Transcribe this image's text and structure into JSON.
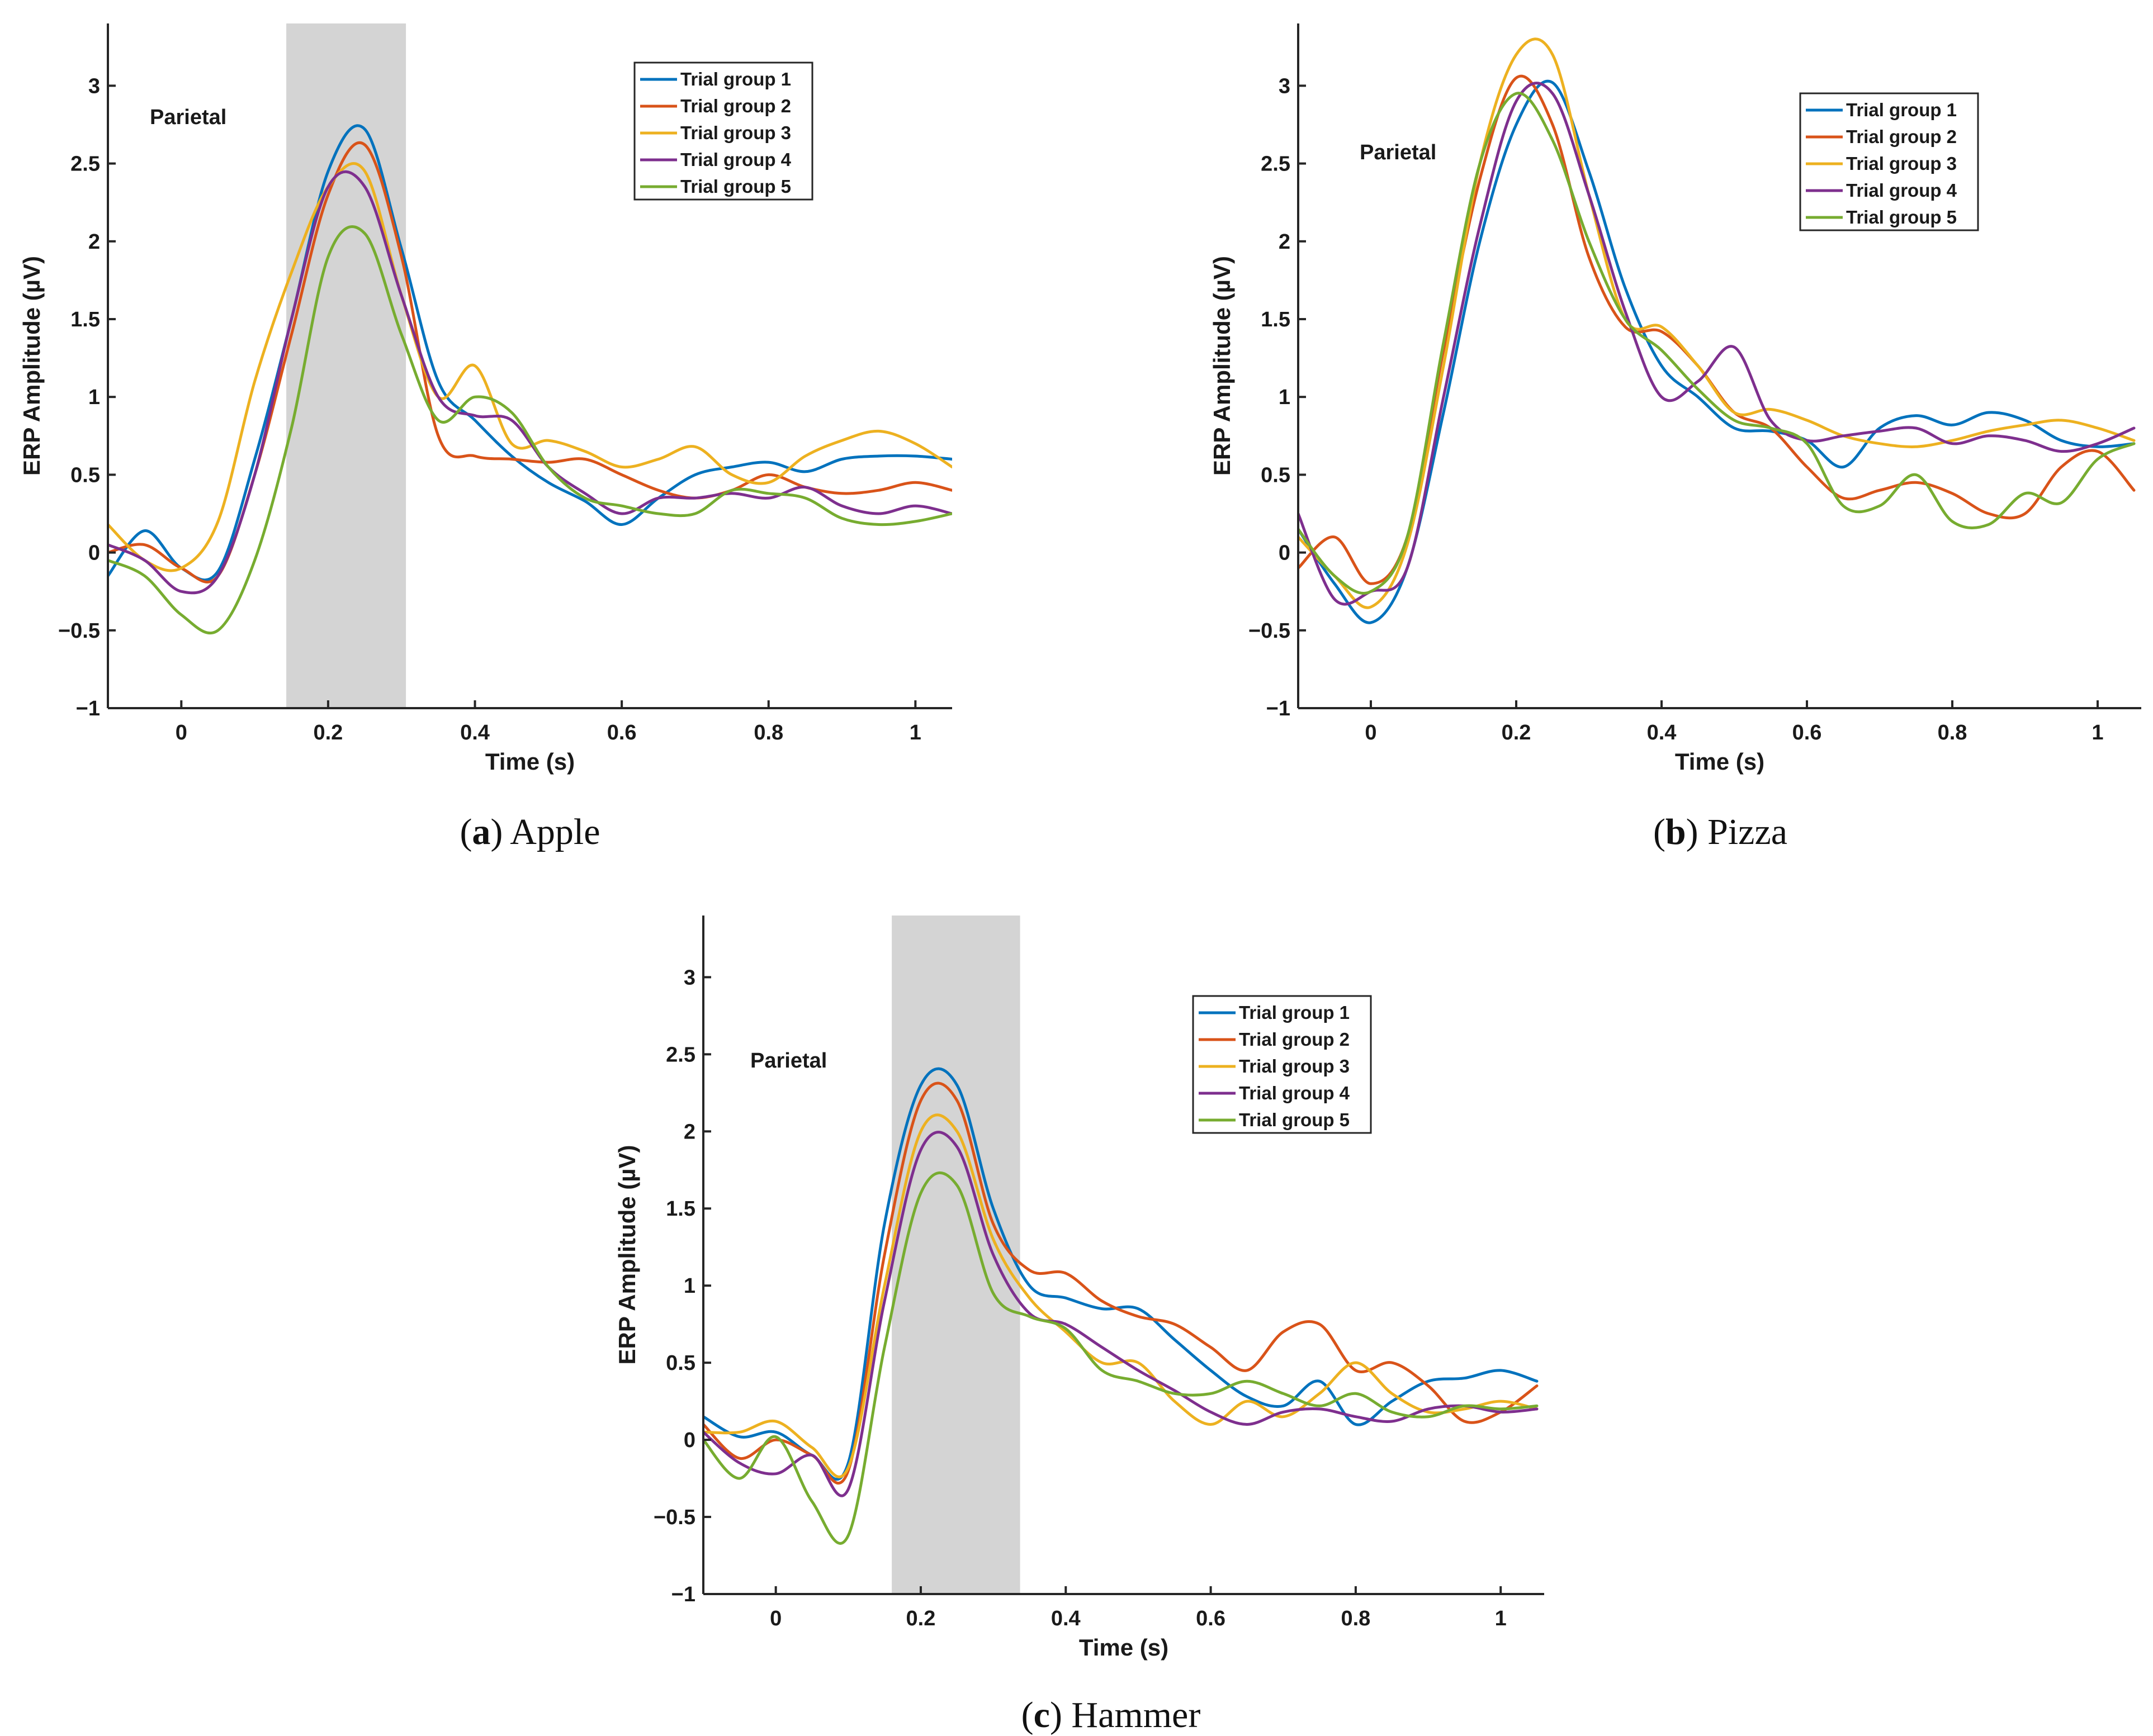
{
  "figure": {
    "captions": [
      {
        "tag": "a",
        "name": "Apple"
      },
      {
        "tag": "b",
        "name": "Pizza"
      },
      {
        "tag": "c",
        "name": "Hammer"
      }
    ]
  },
  "colors": [
    "#0072BD",
    "#D95319",
    "#EDB120",
    "#7E2F8E",
    "#77AC30"
  ],
  "chart_data": [
    {
      "type": "line",
      "title": "Apple",
      "xlabel": "Time (s)",
      "ylabel": "ERP Amplitude (µV)",
      "annotation": "Parietal",
      "xlim": [
        -0.1,
        1.05
      ],
      "ylim": [
        -1,
        3.4
      ],
      "xticks": [
        0,
        0.2,
        0.4,
        0.6,
        0.8,
        1
      ],
      "xtick_labels": [
        "0",
        "0.2",
        "0.4",
        "0.6",
        "0.8",
        "1"
      ],
      "yticks": [
        -1,
        -0.5,
        0,
        0.5,
        1,
        1.5,
        2,
        2.5,
        3
      ],
      "ytick_labels": [
        "−1",
        "−0.5",
        "0",
        "0.5",
        "1",
        "1.5",
        "2",
        "2.5",
        "3"
      ],
      "highlight_range": [
        0.143,
        0.306
      ],
      "legend_position": "top-right",
      "x": [
        -0.1,
        -0.05,
        0.0,
        0.05,
        0.1,
        0.15,
        0.2,
        0.25,
        0.3,
        0.35,
        0.4,
        0.45,
        0.5,
        0.55,
        0.6,
        0.65,
        0.7,
        0.75,
        0.8,
        0.85,
        0.9,
        0.95,
        1.0,
        1.05
      ],
      "series": [
        {
          "name": "Trial group 1",
          "values": [
            -0.15,
            0.14,
            -0.1,
            -0.12,
            0.6,
            1.5,
            2.45,
            2.72,
            1.95,
            1.1,
            0.85,
            0.62,
            0.45,
            0.33,
            0.18,
            0.35,
            0.5,
            0.55,
            0.58,
            0.52,
            0.6,
            0.62,
            0.62,
            0.6
          ]
        },
        {
          "name": "Trial group 2",
          "values": [
            0.0,
            0.05,
            -0.1,
            -0.15,
            0.5,
            1.4,
            2.3,
            2.62,
            1.9,
            0.75,
            0.62,
            0.6,
            0.58,
            0.6,
            0.5,
            0.4,
            0.35,
            0.4,
            0.5,
            0.42,
            0.38,
            0.4,
            0.45,
            0.4
          ]
        },
        {
          "name": "Trial group 3",
          "values": [
            0.18,
            -0.05,
            -0.1,
            0.2,
            1.1,
            1.8,
            2.35,
            2.45,
            1.65,
            1.0,
            1.2,
            0.7,
            0.72,
            0.65,
            0.55,
            0.6,
            0.68,
            0.5,
            0.45,
            0.62,
            0.72,
            0.78,
            0.7,
            0.55
          ]
        },
        {
          "name": "Trial group 4",
          "values": [
            0.05,
            -0.05,
            -0.25,
            -0.15,
            0.5,
            1.5,
            2.35,
            2.35,
            1.65,
            1.0,
            0.88,
            0.85,
            0.55,
            0.38,
            0.25,
            0.35,
            0.35,
            0.38,
            0.35,
            0.42,
            0.3,
            0.25,
            0.3,
            0.25
          ]
        },
        {
          "name": "Trial group 5",
          "values": [
            -0.05,
            -0.15,
            -0.4,
            -0.5,
            -0.05,
            0.8,
            1.9,
            2.05,
            1.4,
            0.85,
            1.0,
            0.9,
            0.55,
            0.35,
            0.3,
            0.25,
            0.25,
            0.4,
            0.38,
            0.35,
            0.22,
            0.18,
            0.2,
            0.25
          ]
        }
      ]
    },
    {
      "type": "line",
      "title": "Pizza",
      "xlabel": "Time (s)",
      "ylabel": "ERP Amplitude (µV)",
      "annotation": "Parietal",
      "xlim": [
        -0.1,
        1.06
      ],
      "ylim": [
        -1,
        3.4
      ],
      "xticks": [
        0,
        0.2,
        0.4,
        0.6,
        0.8,
        1
      ],
      "xtick_labels": [
        "0",
        "0.2",
        "0.4",
        "0.6",
        "0.8",
        "1"
      ],
      "yticks": [
        -1,
        -0.5,
        0,
        0.5,
        1,
        1.5,
        2,
        2.5,
        3
      ],
      "ytick_labels": [
        "−1",
        "−0.5",
        "0",
        "0.5",
        "1",
        "1.5",
        "2",
        "2.5",
        "3"
      ],
      "highlight_range": null,
      "legend_position": "top-right",
      "x": [
        -0.1,
        -0.05,
        0.0,
        0.05,
        0.1,
        0.15,
        0.2,
        0.25,
        0.3,
        0.35,
        0.4,
        0.45,
        0.5,
        0.55,
        0.6,
        0.65,
        0.7,
        0.75,
        0.8,
        0.85,
        0.9,
        0.95,
        1.0,
        1.05
      ],
      "series": [
        {
          "name": "Trial group 1",
          "values": [
            0.15,
            -0.2,
            -0.45,
            -0.1,
            0.9,
            2.0,
            2.75,
            3.02,
            2.45,
            1.7,
            1.2,
            1.0,
            0.8,
            0.78,
            0.72,
            0.55,
            0.8,
            0.88,
            0.82,
            0.9,
            0.85,
            0.72,
            0.68,
            0.7
          ]
        },
        {
          "name": "Trial group 2",
          "values": [
            -0.1,
            0.1,
            -0.2,
            0.1,
            1.3,
            2.4,
            3.05,
            2.75,
            1.9,
            1.45,
            1.42,
            1.2,
            0.9,
            0.8,
            0.55,
            0.35,
            0.4,
            0.45,
            0.38,
            0.25,
            0.25,
            0.55,
            0.65,
            0.4
          ]
        },
        {
          "name": "Trial group 3",
          "values": [
            0.1,
            -0.15,
            -0.35,
            0.05,
            1.2,
            2.5,
            3.2,
            3.2,
            2.3,
            1.5,
            1.45,
            1.2,
            0.9,
            0.92,
            0.85,
            0.75,
            0.7,
            0.68,
            0.72,
            0.78,
            0.82,
            0.85,
            0.8,
            0.72
          ]
        },
        {
          "name": "Trial group 4",
          "values": [
            0.25,
            -0.3,
            -0.25,
            -0.1,
            1.0,
            2.1,
            2.9,
            2.95,
            2.3,
            1.55,
            1.0,
            1.1,
            1.32,
            0.85,
            0.72,
            0.75,
            0.78,
            0.8,
            0.7,
            0.75,
            0.72,
            0.65,
            0.7,
            0.8
          ]
        },
        {
          "name": "Trial group 5",
          "values": [
            0.15,
            -0.15,
            -0.25,
            0.1,
            1.35,
            2.5,
            2.95,
            2.65,
            2.0,
            1.5,
            1.3,
            1.05,
            0.85,
            0.8,
            0.7,
            0.3,
            0.3,
            0.5,
            0.2,
            0.18,
            0.38,
            0.32,
            0.6,
            0.7
          ]
        }
      ]
    },
    {
      "type": "line",
      "title": "Hammer",
      "xlabel": "Time (s)",
      "ylabel": "ERP Amplitude (µV)",
      "annotation": "Parietal",
      "xlim": [
        -0.1,
        1.06
      ],
      "ylim": [
        -1,
        3.4
      ],
      "xticks": [
        0,
        0.2,
        0.4,
        0.6,
        0.8,
        1
      ],
      "xtick_labels": [
        "0",
        "0.2",
        "0.4",
        "0.6",
        "0.8",
        "1"
      ],
      "yticks": [
        -1,
        -0.5,
        0,
        0.5,
        1,
        1.5,
        2,
        2.5,
        3
      ],
      "ytick_labels": [
        "−1",
        "−0.5",
        "0",
        "0.5",
        "1",
        "1.5",
        "2",
        "2.5",
        "3"
      ],
      "highlight_range": [
        0.16,
        0.337
      ],
      "legend_position": "top-right",
      "x": [
        -0.1,
        -0.05,
        0.0,
        0.05,
        0.1,
        0.15,
        0.2,
        0.25,
        0.3,
        0.35,
        0.4,
        0.45,
        0.5,
        0.55,
        0.6,
        0.65,
        0.7,
        0.75,
        0.8,
        0.85,
        0.9,
        0.95,
        1.0,
        1.05
      ],
      "series": [
        {
          "name": "Trial group 1",
          "values": [
            0.15,
            0.02,
            0.05,
            -0.1,
            -0.15,
            1.4,
            2.3,
            2.3,
            1.5,
            1.0,
            0.92,
            0.85,
            0.85,
            0.65,
            0.45,
            0.28,
            0.22,
            0.38,
            0.1,
            0.25,
            0.38,
            0.4,
            0.45,
            0.38
          ]
        },
        {
          "name": "Trial group 2",
          "values": [
            0.1,
            -0.12,
            0.0,
            -0.1,
            -0.2,
            1.2,
            2.2,
            2.2,
            1.4,
            1.1,
            1.08,
            0.9,
            0.8,
            0.75,
            0.6,
            0.45,
            0.7,
            0.75,
            0.45,
            0.5,
            0.35,
            0.12,
            0.18,
            0.35
          ]
        },
        {
          "name": "Trial group 3",
          "values": [
            0.05,
            0.05,
            0.12,
            -0.05,
            -0.18,
            1.0,
            2.0,
            2.0,
            1.3,
            0.92,
            0.7,
            0.5,
            0.5,
            0.25,
            0.1,
            0.25,
            0.15,
            0.3,
            0.5,
            0.3,
            0.18,
            0.2,
            0.25,
            0.2
          ]
        },
        {
          "name": "Trial group 4",
          "values": [
            0.05,
            -0.15,
            -0.22,
            -0.1,
            -0.32,
            0.9,
            1.88,
            1.9,
            1.2,
            0.82,
            0.75,
            0.6,
            0.45,
            0.32,
            0.18,
            0.1,
            0.18,
            0.2,
            0.15,
            0.12,
            0.2,
            0.22,
            0.18,
            0.2
          ]
        },
        {
          "name": "Trial group 5",
          "values": [
            0.0,
            -0.25,
            0.02,
            -0.4,
            -0.62,
            0.6,
            1.6,
            1.65,
            0.95,
            0.8,
            0.72,
            0.45,
            0.38,
            0.3,
            0.3,
            0.38,
            0.3,
            0.22,
            0.3,
            0.18,
            0.15,
            0.22,
            0.2,
            0.22
          ]
        }
      ]
    }
  ]
}
